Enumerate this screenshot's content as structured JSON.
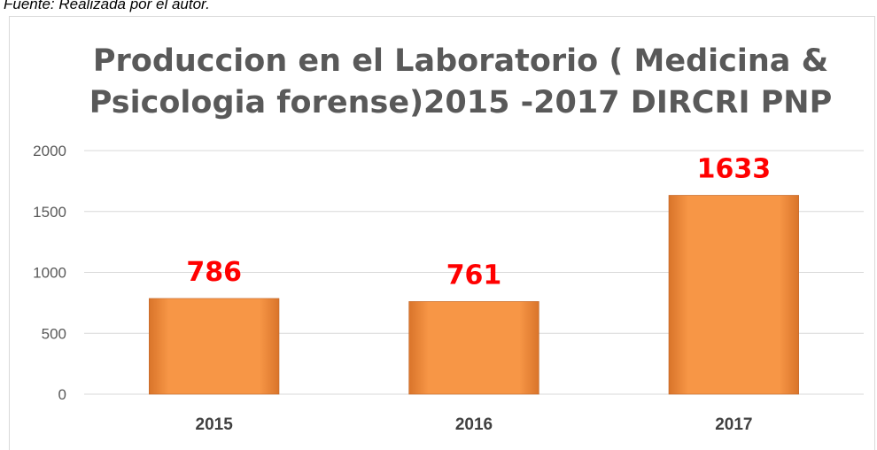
{
  "source": "Fuente: Realizada por el autor.",
  "chart_data": {
    "type": "bar",
    "title": [
      "Produccion en el Laboratorio ( Medicina &",
      "Psicologia forense)2015 -2017 DIRCRI PNP"
    ],
    "categories": [
      "2015",
      "2016",
      "2017"
    ],
    "values": [
      786,
      761,
      1633
    ],
    "color": "#f79646",
    "ylim": [
      0,
      2000
    ],
    "yticks": [
      0,
      500,
      1000,
      1500,
      2000
    ],
    "grid": true
  }
}
